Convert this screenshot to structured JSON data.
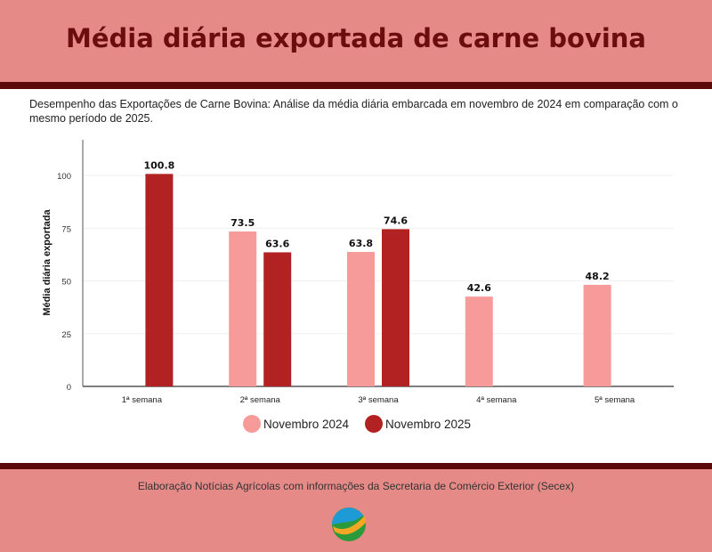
{
  "header": {
    "title": "Média diária exportada de carne bovina"
  },
  "subtitle": "Desempenho das Exportações de Carne Bovina: Análise da média diária embarcada em novembro de 2024 em comparação com o mesmo período de 2025.",
  "footer": {
    "source": "Elaboração Notícias Agrícolas com informações da Secretaria de Comércio Exterior (Secex)"
  },
  "chart_data": {
    "type": "bar",
    "title": "",
    "xlabel": "",
    "ylabel": "Média diária exportada",
    "categories": [
      "1ª semana",
      "2ª semana",
      "3ª semana",
      "4ª semana",
      "5ª semana"
    ],
    "series": [
      {
        "name": "Novembro 2024",
        "color": "#f79a9a",
        "values": [
          null,
          73.5,
          63.8,
          42.6,
          48.2
        ]
      },
      {
        "name": "Novembro 2025",
        "color": "#b22222",
        "values": [
          100.8,
          63.6,
          74.6,
          null,
          null
        ]
      }
    ],
    "yticks": [
      0,
      25,
      50,
      75,
      100
    ],
    "ylim": [
      0,
      117
    ],
    "grid": true,
    "legend": "bottom"
  }
}
